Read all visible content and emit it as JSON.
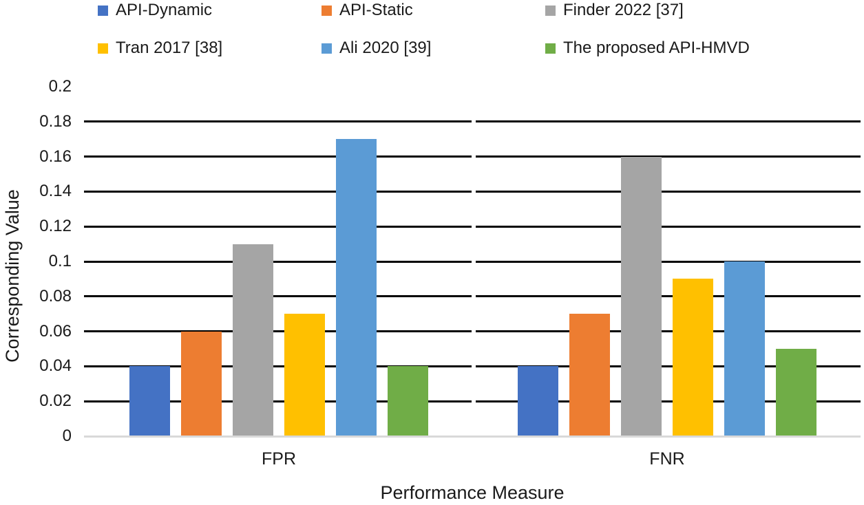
{
  "chart_data": {
    "type": "bar",
    "title": "",
    "xlabel": "Performance Measure",
    "ylabel": "Corresponding Value",
    "categories": [
      "FPR",
      "FNR"
    ],
    "series": [
      {
        "name": "API-Dynamic",
        "color": "#4472c4",
        "values": [
          0.04,
          0.04
        ]
      },
      {
        "name": "API-Static",
        "color": "#ed7d31",
        "values": [
          0.06,
          0.07
        ]
      },
      {
        "name": "Finder 2022 [37]",
        "color": "#a5a5a5",
        "values": [
          0.11,
          0.16
        ]
      },
      {
        "name": "Tran 2017 [38]",
        "color": "#ffc000",
        "values": [
          0.07,
          0.09
        ]
      },
      {
        "name": "Ali 2020 [39]",
        "color": "#5b9bd5",
        "values": [
          0.17,
          0.1
        ]
      },
      {
        "name": "The proposed API-HMVD",
        "color": "#70ad47",
        "values": [
          0.04,
          0.05
        ]
      }
    ],
    "ylim": [
      0,
      0.2
    ],
    "ytick_step": 0.02,
    "yticks": [
      "0",
      "0.02",
      "0.04",
      "0.06",
      "0.08",
      "0.1",
      "0.12",
      "0.14",
      "0.16",
      "0.18",
      "0.2"
    ],
    "grid": "horizontal-black",
    "legend_position": "top-two-rows"
  },
  "style": {
    "gridline_color": "#000000",
    "baseline_color": "#d9d9d9",
    "text_color": "#1a1a1a",
    "background": "#ffffff"
  }
}
